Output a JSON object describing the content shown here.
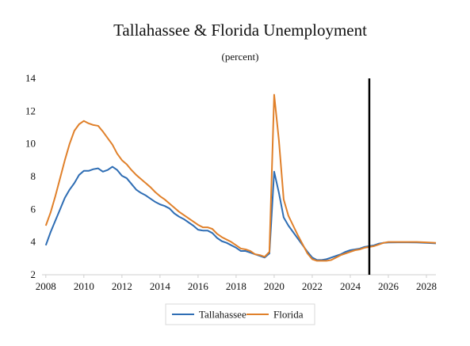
{
  "chart_data": {
    "type": "line",
    "title": "Tallahassee & Florida Unemployment",
    "subtitle": "(percent)",
    "xlabel": "",
    "ylabel": "",
    "xlim": [
      2007.8,
      2028.5
    ],
    "ylim": [
      2,
      14
    ],
    "xticks": [
      2008,
      2010,
      2012,
      2014,
      2016,
      2018,
      2020,
      2022,
      2024,
      2026,
      2028
    ],
    "yticks": [
      2,
      4,
      6,
      8,
      10,
      12,
      14
    ],
    "grid": false,
    "legend_position": "bottom-center",
    "forecast_line_x": 2025.0,
    "series": [
      {
        "name": "Tallahassee",
        "color": "#2e6db4",
        "points": [
          [
            2008.0,
            3.8
          ],
          [
            2008.25,
            4.6
          ],
          [
            2008.5,
            5.3
          ],
          [
            2008.75,
            6.0
          ],
          [
            2009.0,
            6.7
          ],
          [
            2009.25,
            7.2
          ],
          [
            2009.5,
            7.6
          ],
          [
            2009.75,
            8.1
          ],
          [
            2010.0,
            8.35
          ],
          [
            2010.25,
            8.35
          ],
          [
            2010.5,
            8.45
          ],
          [
            2010.75,
            8.5
          ],
          [
            2011.0,
            8.3
          ],
          [
            2011.25,
            8.4
          ],
          [
            2011.5,
            8.6
          ],
          [
            2011.75,
            8.4
          ],
          [
            2012.0,
            8.05
          ],
          [
            2012.25,
            7.9
          ],
          [
            2012.5,
            7.55
          ],
          [
            2012.75,
            7.2
          ],
          [
            2013.0,
            7.0
          ],
          [
            2013.25,
            6.85
          ],
          [
            2013.5,
            6.65
          ],
          [
            2013.75,
            6.45
          ],
          [
            2014.0,
            6.3
          ],
          [
            2014.25,
            6.2
          ],
          [
            2014.5,
            6.05
          ],
          [
            2014.75,
            5.75
          ],
          [
            2015.0,
            5.55
          ],
          [
            2015.25,
            5.4
          ],
          [
            2015.5,
            5.2
          ],
          [
            2015.75,
            5.0
          ],
          [
            2016.0,
            4.75
          ],
          [
            2016.25,
            4.7
          ],
          [
            2016.5,
            4.7
          ],
          [
            2016.75,
            4.55
          ],
          [
            2017.0,
            4.25
          ],
          [
            2017.25,
            4.05
          ],
          [
            2017.5,
            3.95
          ],
          [
            2017.75,
            3.8
          ],
          [
            2018.0,
            3.65
          ],
          [
            2018.25,
            3.45
          ],
          [
            2018.5,
            3.45
          ],
          [
            2018.75,
            3.35
          ],
          [
            2019.0,
            3.25
          ],
          [
            2019.25,
            3.15
          ],
          [
            2019.5,
            3.05
          ],
          [
            2019.75,
            3.3
          ],
          [
            2020.0,
            8.3
          ],
          [
            2020.25,
            7.0
          ],
          [
            2020.5,
            5.5
          ],
          [
            2020.75,
            5.0
          ],
          [
            2021.0,
            4.6
          ],
          [
            2021.25,
            4.2
          ],
          [
            2021.5,
            3.8
          ],
          [
            2021.75,
            3.4
          ],
          [
            2022.0,
            3.05
          ],
          [
            2022.25,
            2.9
          ],
          [
            2022.5,
            2.9
          ],
          [
            2022.75,
            2.95
          ],
          [
            2023.0,
            3.05
          ],
          [
            2023.25,
            3.15
          ],
          [
            2023.5,
            3.25
          ],
          [
            2023.75,
            3.4
          ],
          [
            2024.0,
            3.5
          ],
          [
            2024.25,
            3.55
          ],
          [
            2024.5,
            3.6
          ],
          [
            2024.75,
            3.7
          ],
          [
            2025.0,
            3.75
          ],
          [
            2025.25,
            3.8
          ],
          [
            2025.5,
            3.9
          ],
          [
            2025.75,
            3.95
          ],
          [
            2026.0,
            3.97
          ],
          [
            2026.5,
            3.98
          ],
          [
            2027.0,
            3.98
          ],
          [
            2027.5,
            3.97
          ],
          [
            2028.0,
            3.95
          ],
          [
            2028.5,
            3.92
          ]
        ]
      },
      {
        "name": "Florida",
        "color": "#e0802a",
        "points": [
          [
            2008.0,
            5.0
          ],
          [
            2008.25,
            5.8
          ],
          [
            2008.5,
            6.8
          ],
          [
            2008.75,
            7.9
          ],
          [
            2009.0,
            9.0
          ],
          [
            2009.25,
            10.0
          ],
          [
            2009.5,
            10.8
          ],
          [
            2009.75,
            11.2
          ],
          [
            2010.0,
            11.4
          ],
          [
            2010.25,
            11.25
          ],
          [
            2010.5,
            11.15
          ],
          [
            2010.75,
            11.1
          ],
          [
            2011.0,
            10.75
          ],
          [
            2011.25,
            10.35
          ],
          [
            2011.5,
            9.95
          ],
          [
            2011.75,
            9.4
          ],
          [
            2012.0,
            9.0
          ],
          [
            2012.25,
            8.75
          ],
          [
            2012.5,
            8.4
          ],
          [
            2012.75,
            8.1
          ],
          [
            2013.0,
            7.85
          ],
          [
            2013.25,
            7.6
          ],
          [
            2013.5,
            7.35
          ],
          [
            2013.75,
            7.05
          ],
          [
            2014.0,
            6.8
          ],
          [
            2014.25,
            6.6
          ],
          [
            2014.5,
            6.35
          ],
          [
            2014.75,
            6.1
          ],
          [
            2015.0,
            5.85
          ],
          [
            2015.25,
            5.65
          ],
          [
            2015.5,
            5.45
          ],
          [
            2015.75,
            5.25
          ],
          [
            2016.0,
            5.05
          ],
          [
            2016.25,
            4.9
          ],
          [
            2016.5,
            4.9
          ],
          [
            2016.75,
            4.8
          ],
          [
            2017.0,
            4.5
          ],
          [
            2017.25,
            4.3
          ],
          [
            2017.5,
            4.15
          ],
          [
            2017.75,
            4.0
          ],
          [
            2018.0,
            3.8
          ],
          [
            2018.25,
            3.6
          ],
          [
            2018.5,
            3.55
          ],
          [
            2018.75,
            3.45
          ],
          [
            2019.0,
            3.25
          ],
          [
            2019.25,
            3.2
          ],
          [
            2019.5,
            3.1
          ],
          [
            2019.75,
            3.4
          ],
          [
            2020.0,
            13.0
          ],
          [
            2020.25,
            10.2
          ],
          [
            2020.5,
            6.6
          ],
          [
            2020.75,
            5.6
          ],
          [
            2021.0,
            5.0
          ],
          [
            2021.25,
            4.4
          ],
          [
            2021.5,
            3.85
          ],
          [
            2021.75,
            3.3
          ],
          [
            2022.0,
            2.95
          ],
          [
            2022.25,
            2.85
          ],
          [
            2022.5,
            2.85
          ],
          [
            2022.75,
            2.85
          ],
          [
            2023.0,
            2.9
          ],
          [
            2023.25,
            3.05
          ],
          [
            2023.5,
            3.2
          ],
          [
            2023.75,
            3.3
          ],
          [
            2024.0,
            3.4
          ],
          [
            2024.25,
            3.5
          ],
          [
            2024.5,
            3.55
          ],
          [
            2024.75,
            3.65
          ],
          [
            2025.0,
            3.7
          ],
          [
            2025.25,
            3.75
          ],
          [
            2025.5,
            3.85
          ],
          [
            2025.75,
            3.95
          ],
          [
            2026.0,
            4.0
          ],
          [
            2026.5,
            4.0
          ],
          [
            2027.0,
            4.0
          ],
          [
            2027.5,
            4.0
          ],
          [
            2028.0,
            3.98
          ],
          [
            2028.5,
            3.95
          ]
        ]
      }
    ]
  }
}
